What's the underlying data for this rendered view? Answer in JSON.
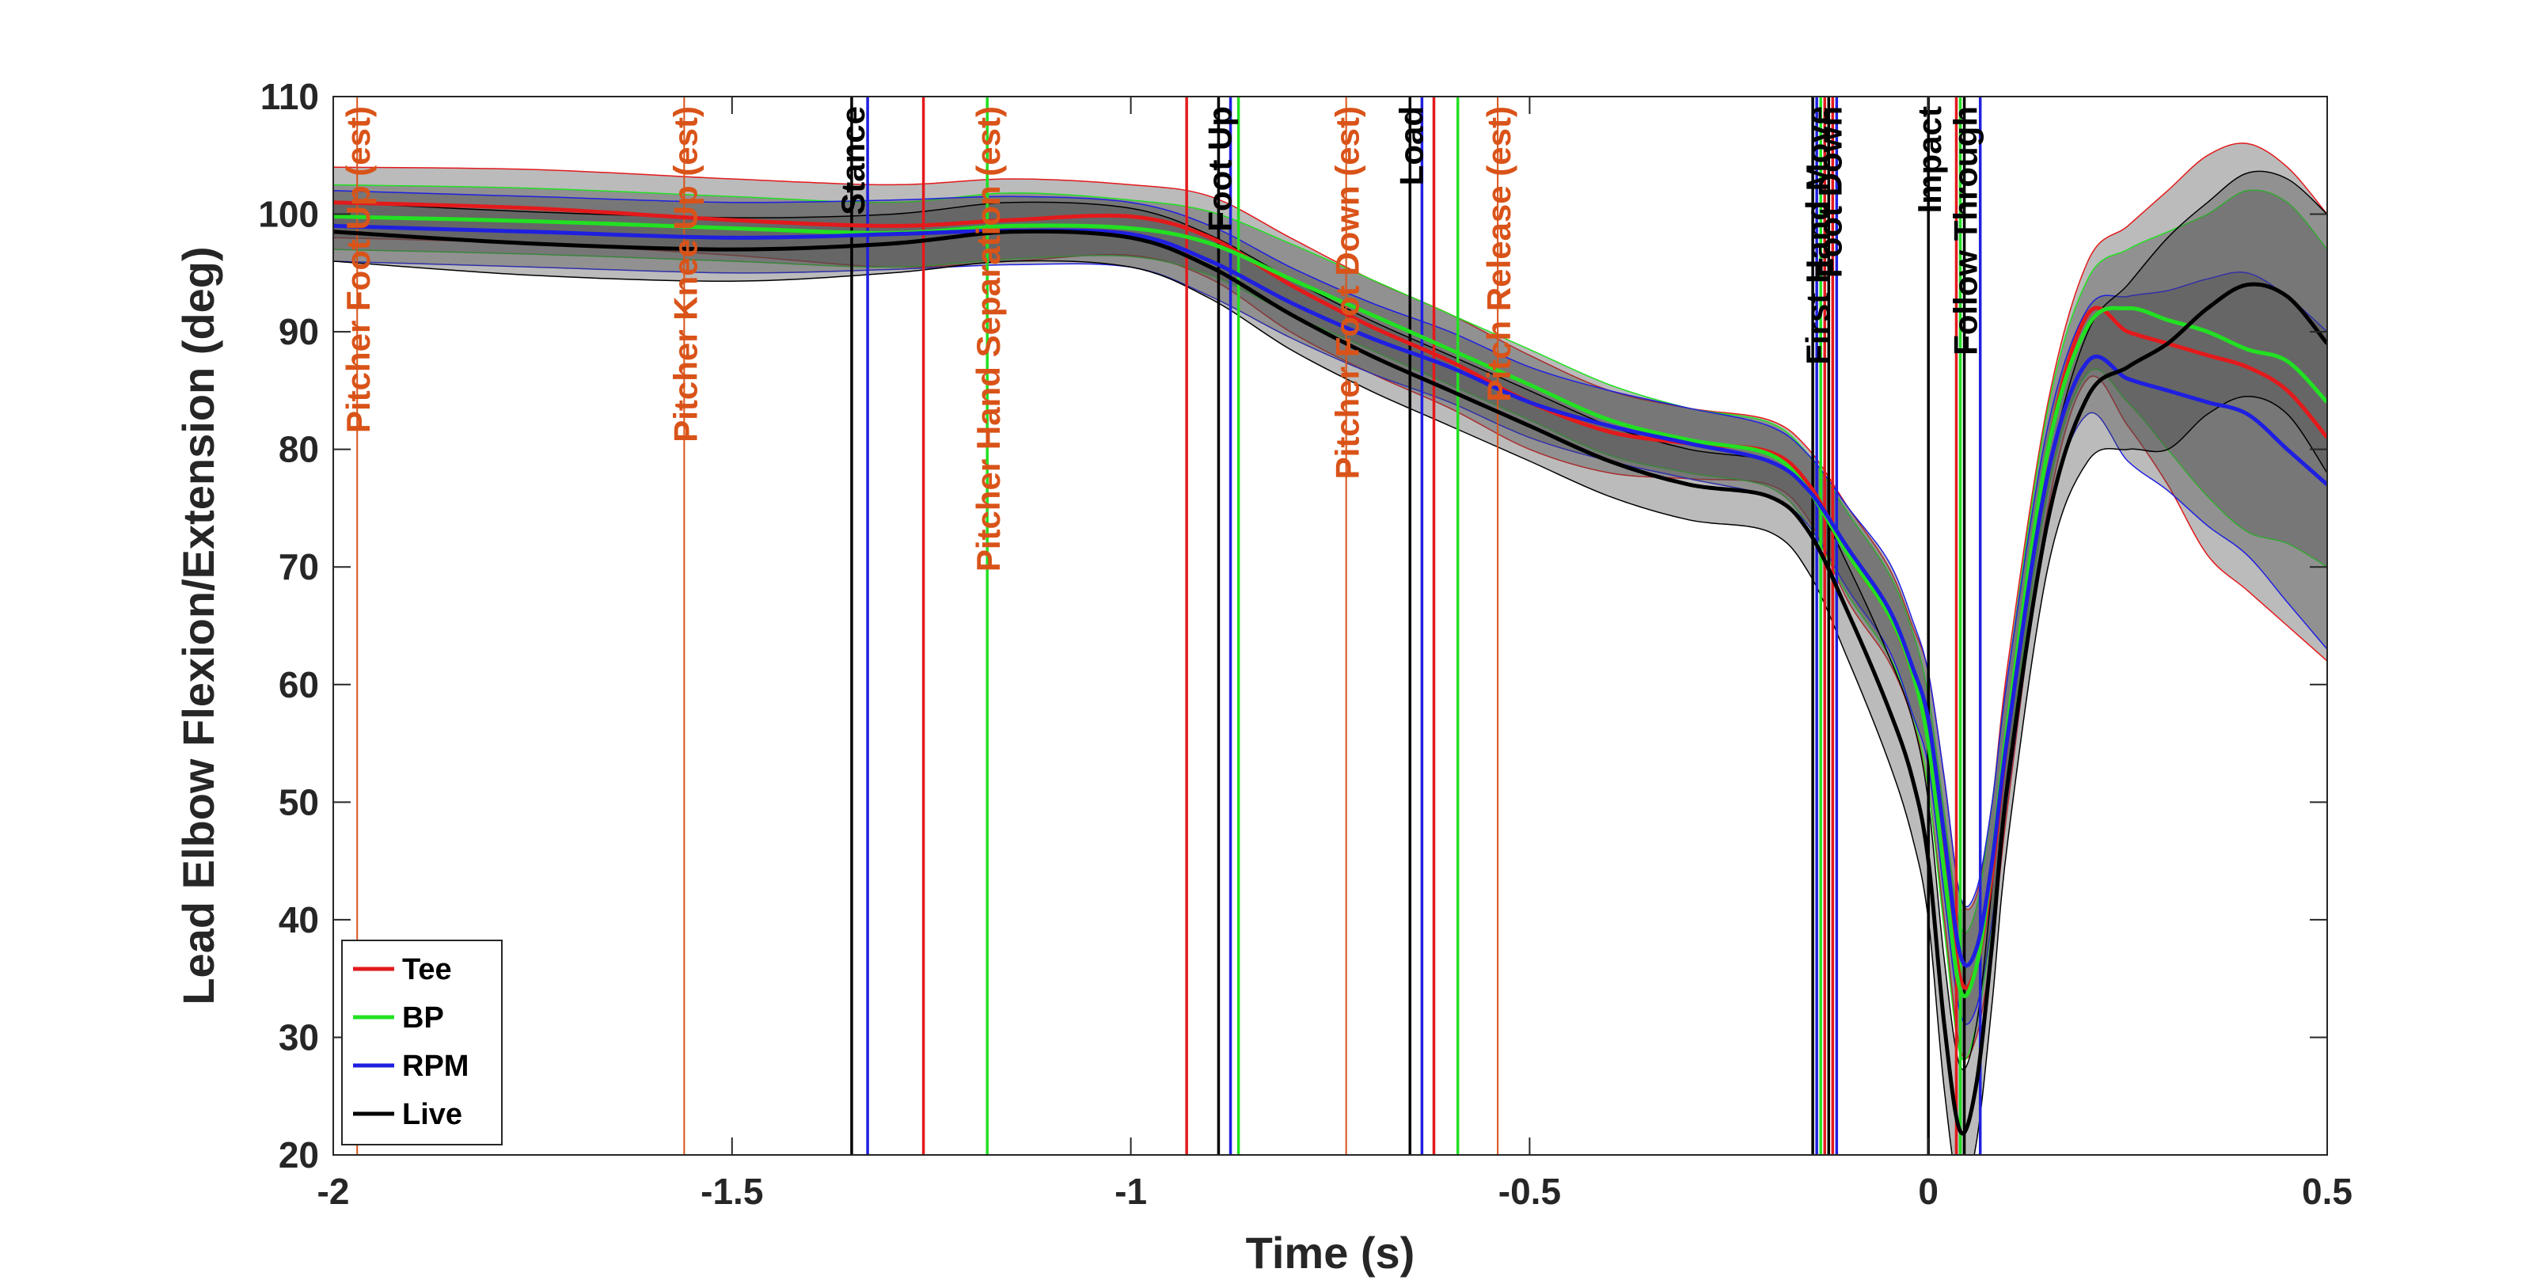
{
  "chart_data": {
    "type": "line",
    "title": "",
    "xlabel": "Time (s)",
    "ylabel": "Lead Elbow Flexion/Extension (deg)",
    "xlim": [
      -2,
      0.5
    ],
    "ylim": [
      20,
      110
    ],
    "x_ticks": [
      -2,
      -1.5,
      -1,
      -0.5,
      0,
      0.5
    ],
    "x_tick_labels": [
      "-2",
      "-1.5",
      "-1",
      "-0.5",
      "0",
      "0.5"
    ],
    "y_ticks": [
      20,
      30,
      40,
      50,
      60,
      70,
      80,
      90,
      100,
      110
    ],
    "y_tick_labels": [
      "20",
      "30",
      "40",
      "50",
      "60",
      "70",
      "80",
      "90",
      "100",
      "110"
    ],
    "grid": false,
    "legend_position": "bottom-left",
    "colors": {
      "Tee": "#e31a1c",
      "BP": "#22e022",
      "RPM": "#1f1fe0",
      "Live": "#000000",
      "pitcher_events": "#d95319",
      "band_fill": "#4d4d4d"
    },
    "x": [
      -2.0,
      -1.75,
      -1.5,
      -1.3,
      -1.15,
      -1.0,
      -0.9,
      -0.8,
      -0.7,
      -0.6,
      -0.5,
      -0.4,
      -0.3,
      -0.2,
      -0.15,
      -0.1,
      -0.05,
      -0.02,
      0.0,
      0.02,
      0.04,
      0.06,
      0.08,
      0.1,
      0.15,
      0.2,
      0.25,
      0.3,
      0.35,
      0.4,
      0.45,
      0.5
    ],
    "series": [
      {
        "name": "Tee",
        "values": [
          101,
          100.5,
          99.5,
          99,
          99.5,
          99.8,
          98,
          94,
          90.5,
          87.5,
          84,
          81.5,
          80.5,
          79.8,
          77,
          71,
          66,
          61,
          56,
          46,
          35,
          36,
          44,
          56,
          80,
          91.5,
          90,
          89,
          88,
          87,
          85,
          81
        ],
        "upper": [
          104,
          103.8,
          103,
          102.5,
          103,
          102.5,
          101.5,
          98,
          94.5,
          91.5,
          88,
          85,
          83.5,
          82.5,
          80,
          75,
          70,
          65,
          61,
          52,
          42,
          42,
          50,
          62,
          84,
          96,
          99,
          102,
          105,
          106,
          104,
          100
        ],
        "lower": [
          98,
          97.5,
          96.5,
          95.5,
          96,
          96.5,
          94.5,
          90,
          86.5,
          83.5,
          80,
          78,
          77.5,
          77,
          74,
          67,
          62,
          57,
          51,
          40,
          29,
          30,
          38,
          50,
          75,
          86,
          82,
          77,
          71,
          68,
          65,
          62
        ]
      },
      {
        "name": "BP",
        "values": [
          99.8,
          99.4,
          98.8,
          98.4,
          99,
          98.8,
          97.5,
          94.5,
          91.5,
          88.5,
          85.5,
          82.5,
          80.8,
          79.6,
          76.5,
          71,
          66,
          61,
          55,
          44,
          34,
          36,
          45,
          57,
          80,
          90.5,
          92,
          91,
          90,
          88.5,
          87.5,
          84
        ],
        "upper": [
          102.5,
          102.2,
          101.5,
          101,
          101.8,
          101.2,
          100.2,
          97.5,
          94.5,
          91.5,
          88.5,
          85.5,
          83.5,
          82.3,
          79.5,
          74.5,
          69.5,
          64.5,
          59,
          49,
          39.5,
          41,
          50,
          61,
          83.5,
          94.5,
          97,
          98.5,
          100,
          102,
          101,
          97
        ],
        "lower": [
          97,
          96.6,
          96,
          95.5,
          96.2,
          96.4,
          94.8,
          91.5,
          88.5,
          85.5,
          82.5,
          79.5,
          78,
          76.8,
          73.5,
          67.5,
          62.5,
          57.5,
          51,
          39,
          28.5,
          31,
          40,
          53,
          76.5,
          86.5,
          84,
          80,
          76,
          73,
          72,
          70
        ]
      },
      {
        "name": "RPM",
        "values": [
          99,
          98.5,
          98,
          98.3,
          98.6,
          98.3,
          96,
          92.5,
          89.5,
          87,
          84,
          82,
          80.5,
          79,
          76.5,
          71.5,
          66.5,
          61.5,
          57,
          47,
          37,
          37.5,
          45,
          56,
          78,
          87.5,
          86,
          85,
          84,
          83,
          80,
          77
        ],
        "upper": [
          102,
          101.5,
          101,
          101.2,
          101.5,
          101,
          99,
          95.5,
          92.5,
          90,
          87,
          85,
          83.5,
          82,
          79.5,
          75,
          70.5,
          65.5,
          61,
          52,
          42,
          42.5,
          50,
          61,
          82,
          92,
          93,
          93.5,
          94.5,
          95,
          93,
          90
        ],
        "lower": [
          96,
          95.5,
          95,
          95.3,
          95.7,
          95.5,
          93,
          89.5,
          86.5,
          84,
          81,
          79,
          77.5,
          76,
          73.5,
          68,
          63,
          57.5,
          53,
          42,
          32,
          32.5,
          40,
          51,
          74,
          83,
          79,
          76.5,
          73.5,
          71,
          67,
          63
        ]
      },
      {
        "name": "Live",
        "values": [
          98.5,
          97.5,
          97,
          97.5,
          98.5,
          98,
          95.5,
          91.5,
          88,
          85,
          82,
          79,
          77,
          76,
          73,
          66,
          58,
          52,
          45,
          31,
          22,
          26,
          38,
          52,
          74,
          84.5,
          87,
          89,
          92,
          94,
          93,
          89
        ],
        "upper": [
          101,
          100.2,
          99.7,
          100,
          101,
          100.5,
          98.2,
          94.5,
          91,
          88,
          85,
          82,
          80,
          79,
          76.5,
          70,
          62.5,
          57,
          50,
          36.5,
          27.5,
          31,
          43,
          57,
          78,
          90,
          94,
          98,
          101,
          103.5,
          103,
          100
        ],
        "lower": [
          96,
          94.8,
          94.3,
          95,
          96,
          95.5,
          92.8,
          88.5,
          85,
          82,
          79,
          76,
          74,
          73,
          69.5,
          62,
          53.5,
          47,
          40,
          25.5,
          16.5,
          21,
          33,
          47,
          70,
          79,
          80,
          80,
          83,
          84.5,
          83,
          78
        ]
      }
    ],
    "legend": [
      "Tee",
      "BP",
      "RPM",
      "Live"
    ],
    "event_lines": [
      {
        "x": -1.35,
        "series": "Live"
      },
      {
        "x": -1.33,
        "series": "RPM"
      },
      {
        "x": -1.26,
        "series": "Tee"
      },
      {
        "x": -1.18,
        "series": "BP"
      },
      {
        "x": -0.93,
        "series": "Tee"
      },
      {
        "x": -0.89,
        "series": "Live"
      },
      {
        "x": -0.875,
        "series": "RPM"
      },
      {
        "x": -0.865,
        "series": "BP"
      },
      {
        "x": -0.65,
        "series": "Live"
      },
      {
        "x": -0.635,
        "series": "RPM"
      },
      {
        "x": -0.62,
        "series": "Tee"
      },
      {
        "x": -0.59,
        "series": "BP"
      },
      {
        "x": -0.145,
        "series": "Live"
      },
      {
        "x": -0.14,
        "series": "RPM"
      },
      {
        "x": -0.135,
        "series": "BP"
      },
      {
        "x": -0.13,
        "series": "Tee"
      },
      {
        "x": -0.125,
        "series": "Live"
      },
      {
        "x": -0.12,
        "series": "Tee"
      },
      {
        "x": -0.115,
        "series": "RPM"
      },
      {
        "x": 0.0,
        "series": "Live"
      },
      {
        "x": 0.035,
        "series": "Tee"
      },
      {
        "x": 0.04,
        "series": "BP"
      },
      {
        "x": 0.045,
        "series": "Live"
      },
      {
        "x": 0.065,
        "series": "RPM"
      }
    ],
    "annotations": {
      "swing_events": [
        {
          "label": "Stance",
          "x": -1.35
        },
        {
          "label": "Foot Up",
          "x": -0.89
        },
        {
          "label": "Load",
          "x": -0.65
        },
        {
          "label": "First Hand Move",
          "x": -0.14
        },
        {
          "label": "Foot Down",
          "x": -0.125
        },
        {
          "label": "Impact",
          "x": 0.0
        },
        {
          "label": "Follow Through",
          "x": 0.045
        }
      ],
      "pitcher_events": [
        {
          "label": "Pitcher Foot Up (est)",
          "x": -1.97
        },
        {
          "label": "Pitcher Knee Up (est)",
          "x": -1.56
        },
        {
          "label": "Pitcher Hand Separation (est)",
          "x": -1.18
        },
        {
          "label": "Pitcher Foot Down (est)",
          "x": -0.73
        },
        {
          "label": "Pitch Release (est)",
          "x": -0.54
        }
      ]
    }
  }
}
